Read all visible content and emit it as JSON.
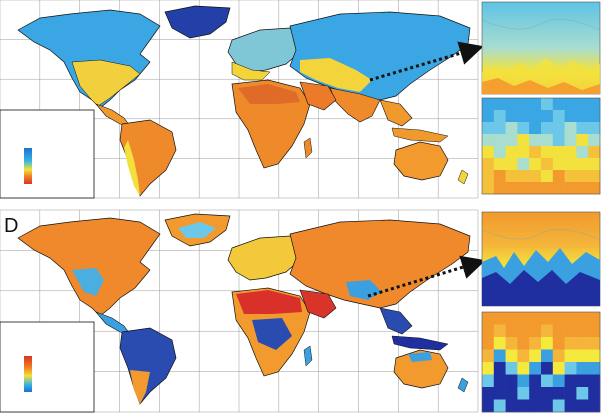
{
  "figure": {
    "panels": [
      {
        "id": "top",
        "letter": "",
        "scheme": "cold-top",
        "legend_gradient": [
          "#1f6fd0",
          "#33b3e6",
          "#f2e23a",
          "#f07a22",
          "#d9342a"
        ]
      },
      {
        "id": "bottom",
        "letter": "D",
        "scheme": "warm-top",
        "legend_gradient": [
          "#d9342a",
          "#f07a22",
          "#f2e23a",
          "#33b3e6",
          "#1f6fd0"
        ]
      }
    ],
    "zoom_insets": [
      "fine-resolution",
      "coarse-resolution"
    ],
    "colors": {
      "very_cold": "#1f3fa8",
      "cold": "#2f8ee0",
      "cool": "#6cc7e8",
      "mild": "#f4e93c",
      "warm": "#f29a2e",
      "hot": "#e5482a",
      "very_hot": "#c9202a",
      "grid": "#9a9a9a",
      "border": "#111111"
    }
  }
}
